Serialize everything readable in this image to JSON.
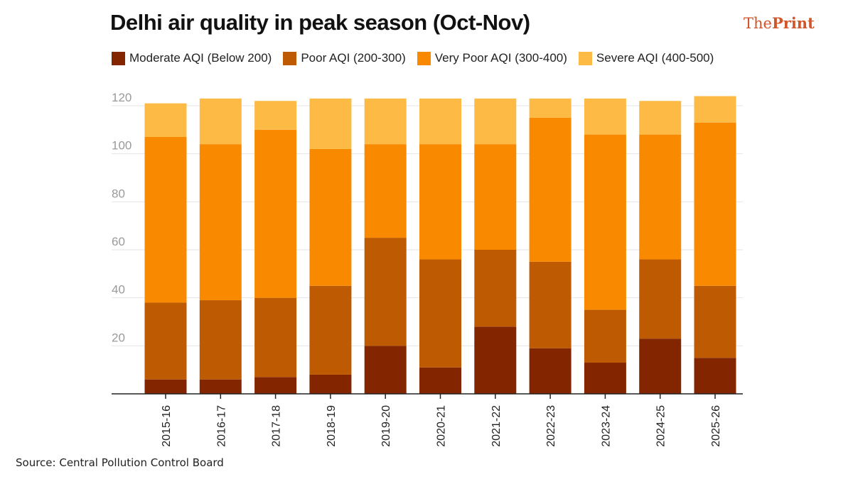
{
  "title": "Delhi air quality in peak season (Oct-Nov)",
  "logo": {
    "part1": "The",
    "part2": "Print"
  },
  "source": "Source: Central Pollution Control Board",
  "colors": {
    "moderate": "#832600",
    "poor": "#BD5A02",
    "very_poor": "#F98A00",
    "severe": "#FDBB45",
    "logo": "#D2552A"
  },
  "chart_data": {
    "type": "bar",
    "stacked": true,
    "title": "Delhi air quality in peak season (Oct-Nov)",
    "xlabel": "",
    "ylabel": "",
    "ylim": [
      0,
      120
    ],
    "yticks": [
      20,
      40,
      60,
      80,
      100,
      120
    ],
    "grid": true,
    "legend_position": "top",
    "categories": [
      "2015-16",
      "2016-17",
      "2017-18",
      "2018-19",
      "2019-20",
      "2020-21",
      "2021-22",
      "2022-23",
      "2023-24",
      "2024-25",
      "2025-26"
    ],
    "series": [
      {
        "name": "Moderate AQI (Below 200)",
        "key": "moderate",
        "values": [
          6,
          6,
          7,
          8,
          20,
          11,
          28,
          19,
          13,
          23,
          15
        ]
      },
      {
        "name": "Poor AQI (200-300)",
        "key": "poor",
        "values": [
          32,
          33,
          33,
          37,
          45,
          45,
          32,
          36,
          22,
          33,
          30
        ]
      },
      {
        "name": "Very Poor AQI (300-400)",
        "key": "very_poor",
        "values": [
          69,
          65,
          70,
          57,
          39,
          48,
          44,
          60,
          73,
          52,
          68
        ]
      },
      {
        "name": "Severe AQI (400-500)",
        "key": "severe",
        "values": [
          14,
          19,
          12,
          21,
          19,
          19,
          19,
          8,
          15,
          14,
          11
        ]
      }
    ]
  }
}
